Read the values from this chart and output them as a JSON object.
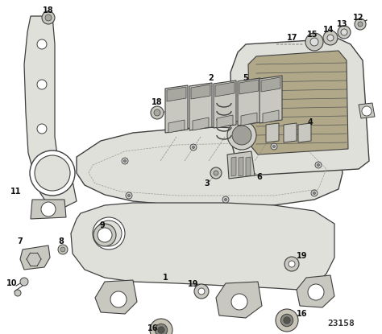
{
  "diagram_number": "23158",
  "background_color": "#ffffff",
  "line_color": "#404040",
  "text_color": "#111111",
  "figsize": [
    4.74,
    4.15
  ],
  "dpi": 100,
  "fill_light": "#e0e0da",
  "fill_mid": "#c8c8c0",
  "fill_dark": "#a8a8a0"
}
